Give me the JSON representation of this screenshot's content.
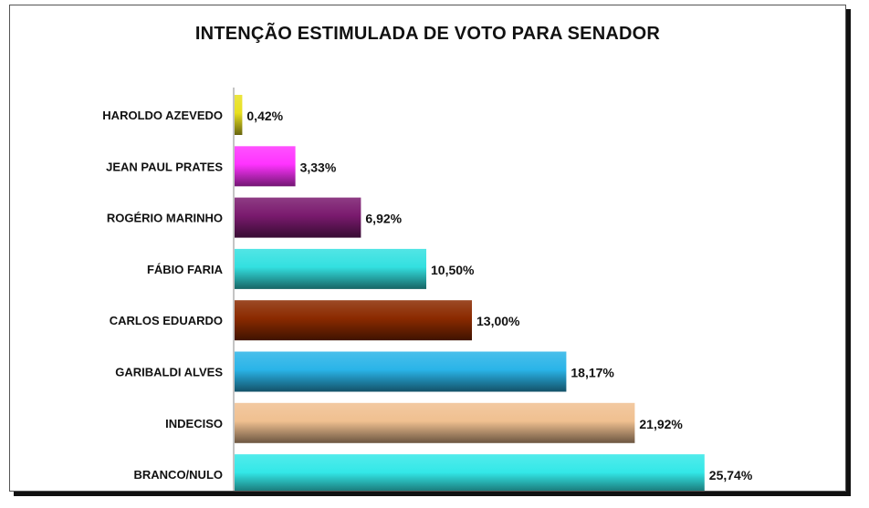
{
  "chart_data": {
    "type": "bar",
    "orientation": "horizontal",
    "title": "INTENÇÃO ESTIMULADA DE VOTO PARA SENADOR",
    "categories": [
      "HAROLDO AZEVEDO",
      "JEAN PAUL PRATES",
      "ROGÉRIO MARINHO",
      "FÁBIO FARIA",
      "CARLOS EDUARDO",
      "GARIBALDI ALVES",
      "INDECISO",
      "BRANCO/NULO"
    ],
    "values": [
      0.42,
      3.33,
      6.92,
      10.5,
      13.0,
      18.17,
      21.92,
      25.74
    ],
    "value_labels": [
      "0,42%",
      "3,33%",
      "6,92%",
      "10,50%",
      "13,00%",
      "18,17%",
      "21,92%",
      "25,74%"
    ],
    "colors": [
      "#e8e020",
      "#ff33ff",
      "#7a1a6e",
      "#33e0e0",
      "#8b2a00",
      "#2ab4e8",
      "#f0c090",
      "#33e8e8"
    ],
    "xlim": [
      0,
      30
    ],
    "grid": false,
    "legend": "none"
  }
}
